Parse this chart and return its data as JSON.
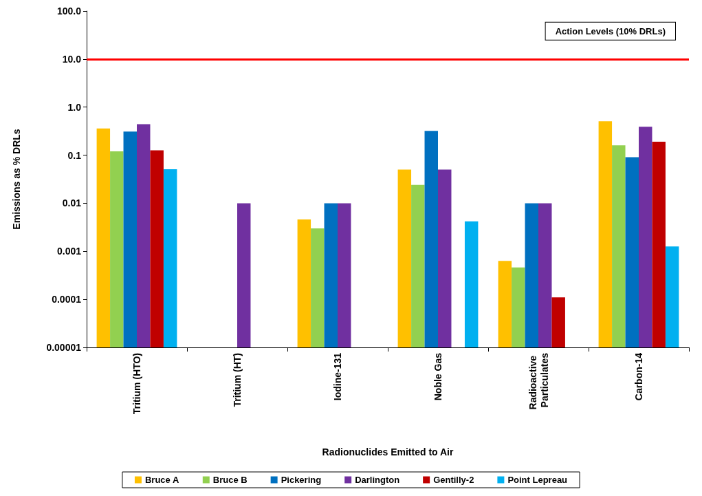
{
  "chart_data": {
    "type": "bar",
    "xlabel": "Radionuclides Emitted to Air",
    "ylabel": "Emissions as % DRLs",
    "categories": [
      "Tritium (HTO)",
      "Tritium (HT)",
      "Iodine-131",
      "Noble Gas",
      "Radioactive Particulates",
      "Carbon-14"
    ],
    "series": [
      {
        "name": "Bruce A",
        "color": "#ffc000",
        "values": [
          0.36,
          null,
          0.0046,
          0.05,
          0.00063,
          0.51
        ]
      },
      {
        "name": "Bruce B",
        "color": "#92d050",
        "values": [
          0.12,
          null,
          0.003,
          0.024,
          0.00046,
          0.16
        ]
      },
      {
        "name": "Pickering",
        "color": "#0070c0",
        "values": [
          0.31,
          null,
          0.01,
          0.32,
          0.01,
          0.091
        ]
      },
      {
        "name": "Darlington",
        "color": "#7030a0",
        "values": [
          0.44,
          0.01,
          0.01,
          0.05,
          0.01,
          0.39
        ]
      },
      {
        "name": "Gentilly-2",
        "color": "#c00000",
        "values": [
          0.126,
          null,
          null,
          null,
          0.00011,
          0.19
        ]
      },
      {
        "name": "Point Lepreau",
        "color": "#00b0f0",
        "values": [
          0.051,
          null,
          null,
          0.0042,
          null,
          0.00126
        ]
      }
    ],
    "log": "y",
    "ylim": [
      1e-05,
      100
    ],
    "yticks": [
      {
        "value": 1e-05,
        "label": "0.00001"
      },
      0.0001,
      0.001,
      0.01,
      0.1,
      {
        "value": 1,
        "label": "1.0"
      },
      {
        "value": 10,
        "label": "10.0"
      },
      {
        "value": 100,
        "label": "100.0"
      }
    ],
    "ref_lines": [
      {
        "axis": "y",
        "value": 10,
        "label": "Action Levels (10% DRLs)",
        "color": "#ff0000"
      }
    ],
    "legend": "bottom",
    "grid": false
  }
}
